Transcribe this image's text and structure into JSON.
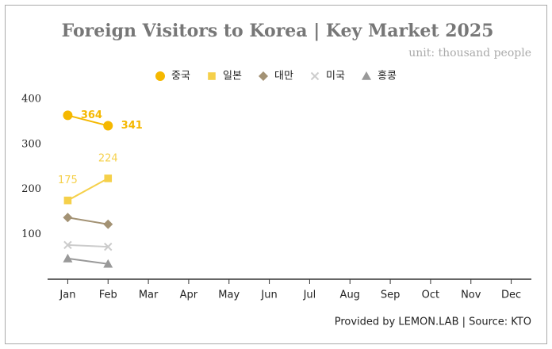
{
  "chart_data": {
    "type": "line",
    "title": "Foreign Visitors to Korea | Key Market 2025",
    "subtitle": "unit: thousand people",
    "source": "Provided by LEMON.LAB | Source: KTO",
    "categories": [
      "Jan",
      "Feb",
      "Mar",
      "Apr",
      "May",
      "Jun",
      "Jul",
      "Aug",
      "Sep",
      "Oct",
      "Nov",
      "Dec"
    ],
    "series": [
      {
        "name": "중국",
        "color": "#f5b800",
        "marker": "circle",
        "data_labels": true,
        "values": [
          364,
          341,
          null,
          null,
          null,
          null,
          null,
          null,
          null,
          null,
          null,
          null
        ]
      },
      {
        "name": "일본",
        "color": "#f5d04a",
        "marker": "square",
        "data_labels": true,
        "values": [
          175,
          224,
          null,
          null,
          null,
          null,
          null,
          null,
          null,
          null,
          null,
          null
        ]
      },
      {
        "name": "대만",
        "color": "#a39274",
        "marker": "diamond",
        "data_labels": false,
        "values": [
          137,
          122,
          null,
          null,
          null,
          null,
          null,
          null,
          null,
          null,
          null,
          null
        ]
      },
      {
        "name": "미국",
        "color": "#cccccc",
        "marker": "x",
        "data_labels": false,
        "values": [
          76,
          72,
          null,
          null,
          null,
          null,
          null,
          null,
          null,
          null,
          null,
          null
        ]
      },
      {
        "name": "홍콩",
        "color": "#999999",
        "marker": "triangle",
        "data_labels": false,
        "values": [
          46,
          34,
          null,
          null,
          null,
          null,
          null,
          null,
          null,
          null,
          null,
          null
        ]
      }
    ],
    "ylim": [
      0,
      400
    ],
    "yticks": [
      100,
      200,
      300,
      400
    ],
    "grid": false,
    "legend": "top"
  }
}
